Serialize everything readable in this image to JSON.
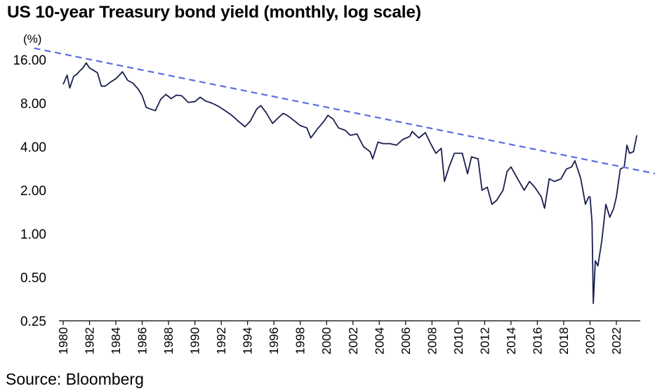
{
  "chart_data": {
    "type": "line",
    "title": "US 10-year Treasury bond yield (monthly, log scale)",
    "ylabel": "(%)",
    "xlabel": "",
    "yscale": "log",
    "ylim": [
      0.25,
      20
    ],
    "xlim": [
      1980,
      2023.6
    ],
    "yticks": [
      "16.00",
      "8.00",
      "4.00",
      "2.00",
      "1.00",
      "0.50",
      "0.25"
    ],
    "ytick_values": [
      16,
      8,
      4,
      2,
      1,
      0.5,
      0.25
    ],
    "xticks": [
      "1980",
      "1982",
      "1984",
      "1986",
      "1988",
      "1990",
      "1992",
      "1994",
      "1996",
      "1998",
      "2000",
      "2002",
      "2004",
      "2006",
      "2008",
      "2010",
      "2012",
      "2014",
      "2016",
      "2018",
      "2020",
      "2022"
    ],
    "grid": false,
    "series": [
      {
        "color": "#1a1f4e",
        "style": "solid",
        "x": [
          1980.0,
          1980.3,
          1980.5,
          1980.8,
          1981.0,
          1981.3,
          1981.5,
          1981.75,
          1982.0,
          1982.3,
          1982.6,
          1982.9,
          1983.2,
          1983.6,
          1984.0,
          1984.5,
          1984.9,
          1985.3,
          1985.7,
          1986.0,
          1986.3,
          1986.6,
          1987.0,
          1987.4,
          1987.8,
          1988.2,
          1988.6,
          1989.0,
          1989.5,
          1990.0,
          1990.4,
          1990.8,
          1991.3,
          1991.8,
          1992.3,
          1992.8,
          1993.3,
          1993.8,
          1994.2,
          1994.7,
          1995.0,
          1995.4,
          1995.9,
          1996.3,
          1996.7,
          1997.0,
          1997.5,
          1998.0,
          1998.5,
          1998.8,
          1999.3,
          1999.8,
          2000.1,
          2000.5,
          2000.9,
          2001.4,
          2001.8,
          2002.3,
          2002.8,
          2003.3,
          2003.5,
          2003.9,
          2004.3,
          2004.8,
          2005.3,
          2005.8,
          2006.3,
          2006.5,
          2007.0,
          2007.5,
          2007.9,
          2008.3,
          2008.7,
          2008.95,
          2009.3,
          2009.7,
          2010.3,
          2010.7,
          2011.0,
          2011.5,
          2011.8,
          2012.2,
          2012.55,
          2012.9,
          2013.4,
          2013.7,
          2014.0,
          2014.5,
          2015.0,
          2015.4,
          2015.8,
          2016.3,
          2016.55,
          2016.9,
          2017.3,
          2017.8,
          2018.2,
          2018.6,
          2018.85,
          2019.3,
          2019.65,
          2019.9,
          2020.0,
          2020.15,
          2020.25,
          2020.4,
          2020.6,
          2020.9,
          2021.2,
          2021.5,
          2021.8,
          2022.0,
          2022.3,
          2022.6,
          2022.8,
          2023.0,
          2023.3,
          2023.55
        ],
        "y": [
          10.8,
          12.5,
          10.2,
          12.3,
          12.6,
          13.5,
          14.0,
          15.2,
          14.0,
          13.5,
          13.0,
          10.5,
          10.5,
          11.2,
          11.8,
          13.2,
          11.5,
          11.0,
          10.0,
          9.0,
          7.5,
          7.3,
          7.1,
          8.5,
          9.2,
          8.6,
          9.1,
          9.0,
          8.1,
          8.2,
          8.8,
          8.3,
          8.0,
          7.6,
          7.1,
          6.6,
          6.0,
          5.5,
          6.0,
          7.3,
          7.7,
          6.9,
          5.8,
          6.3,
          6.8,
          6.6,
          6.1,
          5.6,
          5.4,
          4.6,
          5.3,
          6.0,
          6.6,
          6.2,
          5.4,
          5.2,
          4.8,
          4.9,
          4.0,
          3.7,
          3.3,
          4.3,
          4.2,
          4.2,
          4.1,
          4.5,
          4.7,
          5.1,
          4.6,
          5.0,
          4.2,
          3.6,
          3.9,
          2.3,
          2.9,
          3.6,
          3.6,
          2.6,
          3.4,
          3.3,
          2.0,
          2.1,
          1.6,
          1.7,
          2.0,
          2.7,
          2.9,
          2.4,
          2.0,
          2.3,
          2.1,
          1.8,
          1.5,
          2.4,
          2.3,
          2.4,
          2.8,
          2.9,
          3.2,
          2.4,
          1.6,
          1.8,
          1.8,
          1.2,
          0.33,
          0.65,
          0.6,
          0.9,
          1.6,
          1.3,
          1.5,
          1.8,
          2.8,
          2.9,
          4.1,
          3.6,
          3.7,
          4.8
        ]
      },
      {
        "color": "#5b6ee0",
        "style": "dashed",
        "x": [
          1977.8,
          2025.0
        ],
        "y": [
          19.2,
          2.6
        ]
      }
    ]
  },
  "source": "Source: Bloomberg",
  "colors": {
    "yield_line": "#1a1f4e",
    "trend_line": "#5b6ee0",
    "axis": "#000000"
  }
}
